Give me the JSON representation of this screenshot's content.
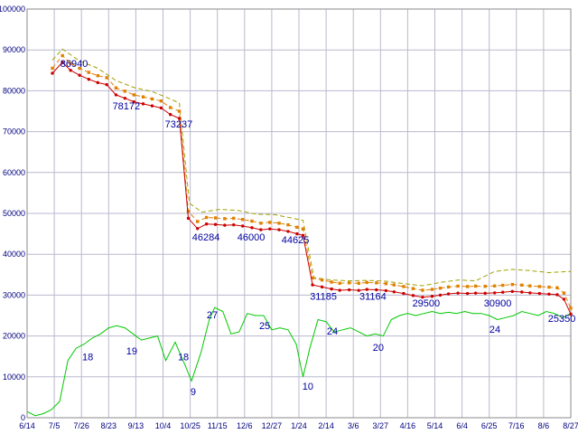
{
  "window": {
    "background": "#ffffff"
  },
  "chart_data": {
    "type": "line",
    "title": "",
    "grid": true,
    "legend": "none",
    "x_axis": {
      "tick_positions": [
        0,
        1,
        2,
        3,
        4,
        5,
        6,
        7,
        8,
        9,
        10,
        11,
        12,
        13,
        14,
        15,
        16,
        17,
        18,
        19,
        20
      ],
      "tick_labels": [
        "6/14",
        "7/5",
        "7/26",
        "8/23",
        "9/13",
        "10/4",
        "10/25",
        "11/15",
        "12/6",
        "12/27",
        "1/24",
        "2/14",
        "3/6",
        "3/27",
        "4/16",
        "5/14",
        "6/4",
        "6/25",
        "7/16",
        "8/6",
        "8/27"
      ]
    },
    "y_axis": {
      "min": 0,
      "max": 100000,
      "tick_values": [
        0,
        10000,
        20000,
        30000,
        40000,
        50000,
        60000,
        70000,
        80000,
        90000,
        100000
      ],
      "tick_labels": [
        "0",
        "10000",
        "20000",
        "30000",
        "40000",
        "50000",
        "60000",
        "70000",
        "80000",
        "90000",
        "100000"
      ]
    },
    "colors": {
      "background": "#ffffff",
      "grid": "#b9b9cf",
      "border": "#8a8a8a",
      "tick_text": "#000080",
      "annotation_text": "#0000a0"
    },
    "series": [
      {
        "name": "count-line",
        "color": "#00c800",
        "style": "solid",
        "marker": "none",
        "value_scale": 1000,
        "points": [
          [
            0,
            1.5
          ],
          [
            0.3,
            0.5
          ],
          [
            0.6,
            1
          ],
          [
            0.9,
            2
          ],
          [
            1.2,
            4
          ],
          [
            1.5,
            14
          ],
          [
            1.8,
            17
          ],
          [
            2.1,
            18
          ],
          [
            2.4,
            19.5
          ],
          [
            2.7,
            20.5
          ],
          [
            3,
            22
          ],
          [
            3.3,
            22.5
          ],
          [
            3.6,
            22
          ],
          [
            3.9,
            20.5
          ],
          [
            4.2,
            19
          ],
          [
            4.5,
            19.5
          ],
          [
            4.8,
            20
          ],
          [
            5.1,
            14
          ],
          [
            5.45,
            18.5
          ],
          [
            5.8,
            13
          ],
          [
            6.05,
            9
          ],
          [
            6.4,
            16
          ],
          [
            6.7,
            24
          ],
          [
            6.9,
            27
          ],
          [
            7.2,
            26
          ],
          [
            7.5,
            20.5
          ],
          [
            7.8,
            21
          ],
          [
            8.1,
            25.5
          ],
          [
            8.4,
            25
          ],
          [
            8.7,
            25
          ],
          [
            9,
            21.5
          ],
          [
            9.3,
            22
          ],
          [
            9.6,
            21.5
          ],
          [
            9.9,
            18
          ],
          [
            10.15,
            10
          ],
          [
            10.4,
            17
          ],
          [
            10.7,
            24
          ],
          [
            11,
            23.5
          ],
          [
            11.3,
            21
          ],
          [
            11.6,
            21.5
          ],
          [
            11.9,
            22
          ],
          [
            12.2,
            21
          ],
          [
            12.5,
            20
          ],
          [
            12.8,
            20.5
          ],
          [
            13.1,
            20
          ],
          [
            13.4,
            24
          ],
          [
            13.7,
            25
          ],
          [
            14,
            25.5
          ],
          [
            14.3,
            25
          ],
          [
            14.6,
            25.5
          ],
          [
            14.9,
            26
          ],
          [
            15.2,
            25.5
          ],
          [
            15.5,
            25.8
          ],
          [
            15.8,
            25.5
          ],
          [
            16.1,
            26
          ],
          [
            16.4,
            25.5
          ],
          [
            16.7,
            25.5
          ],
          [
            17,
            25
          ],
          [
            17.3,
            24
          ],
          [
            17.6,
            24.5
          ],
          [
            17.9,
            25
          ],
          [
            18.2,
            26
          ],
          [
            18.5,
            25.5
          ],
          [
            18.8,
            25
          ],
          [
            19.1,
            26
          ],
          [
            19.4,
            25.5
          ],
          [
            19.7,
            24.5
          ],
          [
            20,
            25.5
          ]
        ]
      },
      {
        "name": "high-price-line",
        "color": "#a0a000",
        "style": "dashed",
        "marker": "none",
        "points": [
          [
            0.93,
            87500
          ],
          [
            1.3,
            90200
          ],
          [
            1.93,
            87300
          ],
          [
            2.6,
            85500
          ],
          [
            3.27,
            82500
          ],
          [
            3.93,
            80800
          ],
          [
            4.6,
            79800
          ],
          [
            5.27,
            78000
          ],
          [
            5.6,
            77000
          ],
          [
            5.97,
            52500
          ],
          [
            6.43,
            50300
          ],
          [
            7.1,
            51000
          ],
          [
            7.77,
            50700
          ],
          [
            8.43,
            49800
          ],
          [
            9.1,
            49700
          ],
          [
            9.77,
            48800
          ],
          [
            10.15,
            48300
          ],
          [
            10.55,
            34300
          ],
          [
            11.2,
            33700
          ],
          [
            11.85,
            33500
          ],
          [
            12.5,
            33600
          ],
          [
            13.2,
            33400
          ],
          [
            13.85,
            32800
          ],
          [
            14.55,
            32300
          ],
          [
            15.2,
            33100
          ],
          [
            15.85,
            33700
          ],
          [
            16.5,
            33500
          ],
          [
            17.2,
            35800
          ],
          [
            17.85,
            36300
          ],
          [
            18.5,
            36000
          ],
          [
            19.2,
            35500
          ],
          [
            19.93,
            35800
          ],
          [
            20,
            35700
          ]
        ]
      },
      {
        "name": "avg-price-line",
        "color": "#e08000",
        "style": "dashed",
        "marker": "square",
        "points": [
          [
            0.93,
            85500
          ],
          [
            1.3,
            88600
          ],
          [
            1.6,
            86700
          ],
          [
            1.93,
            85500
          ],
          [
            2.27,
            84500
          ],
          [
            2.6,
            83700
          ],
          [
            2.93,
            83200
          ],
          [
            3.27,
            80700
          ],
          [
            3.6,
            79900
          ],
          [
            3.93,
            79000
          ],
          [
            4.27,
            78500
          ],
          [
            4.6,
            78000
          ],
          [
            4.93,
            77500
          ],
          [
            5.27,
            75900
          ],
          [
            5.6,
            75000
          ],
          [
            5.93,
            50500
          ],
          [
            6.27,
            48000
          ],
          [
            6.6,
            49000
          ],
          [
            6.93,
            48900
          ],
          [
            7.27,
            48700
          ],
          [
            7.6,
            48800
          ],
          [
            7.93,
            48500
          ],
          [
            8.27,
            48100
          ],
          [
            8.6,
            47600
          ],
          [
            8.93,
            47800
          ],
          [
            9.27,
            47600
          ],
          [
            9.6,
            47200
          ],
          [
            9.93,
            46600
          ],
          [
            10.15,
            46200
          ],
          [
            10.5,
            34200
          ],
          [
            10.85,
            33700
          ],
          [
            11.2,
            33200
          ],
          [
            11.5,
            32900
          ],
          [
            11.85,
            33000
          ],
          [
            12.2,
            32900
          ],
          [
            12.5,
            33100
          ],
          [
            12.85,
            33000
          ],
          [
            13.2,
            32800
          ],
          [
            13.5,
            32500
          ],
          [
            13.85,
            32100
          ],
          [
            14.2,
            31600
          ],
          [
            14.55,
            31200
          ],
          [
            14.9,
            31400
          ],
          [
            15.2,
            31700
          ],
          [
            15.5,
            32000
          ],
          [
            15.85,
            32200
          ],
          [
            16.2,
            32100
          ],
          [
            16.5,
            32200
          ],
          [
            16.85,
            32150
          ],
          [
            17.2,
            32250
          ],
          [
            17.5,
            32400
          ],
          [
            17.85,
            32600
          ],
          [
            18.2,
            32450
          ],
          [
            18.5,
            32250
          ],
          [
            18.85,
            32100
          ],
          [
            19.2,
            31950
          ],
          [
            19.5,
            31800
          ],
          [
            19.75,
            30500
          ],
          [
            20,
            26800
          ]
        ]
      },
      {
        "name": "low-price-line",
        "color": "#cc0000",
        "style": "solid",
        "marker": "dot",
        "points": [
          [
            0.93,
            84300
          ],
          [
            1.3,
            86940
          ],
          [
            1.6,
            85000
          ],
          [
            1.93,
            83800
          ],
          [
            2.27,
            82800
          ],
          [
            2.6,
            82000
          ],
          [
            2.93,
            81500
          ],
          [
            3.27,
            79000
          ],
          [
            3.6,
            78172
          ],
          [
            3.93,
            77300
          ],
          [
            4.27,
            76800
          ],
          [
            4.6,
            76300
          ],
          [
            4.93,
            75800
          ],
          [
            5.27,
            74200
          ],
          [
            5.6,
            73237
          ],
          [
            5.93,
            48800
          ],
          [
            6.27,
            46284
          ],
          [
            6.6,
            47400
          ],
          [
            6.93,
            47300
          ],
          [
            7.27,
            47100
          ],
          [
            7.6,
            47200
          ],
          [
            7.93,
            46900
          ],
          [
            8.27,
            46500
          ],
          [
            8.6,
            46000
          ],
          [
            8.93,
            46200
          ],
          [
            9.27,
            46000
          ],
          [
            9.6,
            45600
          ],
          [
            9.93,
            45000
          ],
          [
            10.15,
            44625
          ],
          [
            10.5,
            32500
          ],
          [
            10.85,
            32000
          ],
          [
            11.2,
            31500
          ],
          [
            11.5,
            31185
          ],
          [
            11.85,
            31300
          ],
          [
            12.2,
            31164
          ],
          [
            12.5,
            31400
          ],
          [
            12.85,
            31300
          ],
          [
            13.2,
            31100
          ],
          [
            13.5,
            30800
          ],
          [
            13.85,
            30400
          ],
          [
            14.2,
            29900
          ],
          [
            14.55,
            29500
          ],
          [
            14.9,
            29700
          ],
          [
            15.2,
            30000
          ],
          [
            15.5,
            30300
          ],
          [
            15.85,
            30500
          ],
          [
            16.2,
            30400
          ],
          [
            16.5,
            30500
          ],
          [
            16.85,
            30450
          ],
          [
            17.2,
            30550
          ],
          [
            17.5,
            30700
          ],
          [
            17.85,
            30900
          ],
          [
            18.2,
            30750
          ],
          [
            18.5,
            30550
          ],
          [
            18.85,
            30400
          ],
          [
            19.2,
            30250
          ],
          [
            19.5,
            30100
          ],
          [
            19.75,
            29000
          ],
          [
            20,
            25350
          ]
        ]
      }
    ],
    "annotations": [
      {
        "text": "86940",
        "x": 1.73,
        "y": 85840
      },
      {
        "text": "78172",
        "x": 3.65,
        "y": 75400
      },
      {
        "text": "73237",
        "x": 5.58,
        "y": 71000
      },
      {
        "text": "46284",
        "x": 6.58,
        "y": 43400
      },
      {
        "text": "46000",
        "x": 8.24,
        "y": 43400
      },
      {
        "text": "44625",
        "x": 9.87,
        "y": 42700
      },
      {
        "text": "31185",
        "x": 10.9,
        "y": 28900
      },
      {
        "text": "31164",
        "x": 12.72,
        "y": 28900
      },
      {
        "text": "29500",
        "x": 14.68,
        "y": 27200
      },
      {
        "text": "30900",
        "x": 17.31,
        "y": 27200
      },
      {
        "text": "25350",
        "x": 19.67,
        "y": 23400
      },
      {
        "text": "18",
        "x": 2.23,
        "y": 14100
      },
      {
        "text": "19",
        "x": 3.85,
        "y": 15500
      },
      {
        "text": "18",
        "x": 5.75,
        "y": 14100
      },
      {
        "text": "9",
        "x": 6.11,
        "y": 5500
      },
      {
        "text": "27",
        "x": 6.81,
        "y": 24300
      },
      {
        "text": "25",
        "x": 8.74,
        "y": 21700
      },
      {
        "text": "10",
        "x": 10.33,
        "y": 6900
      },
      {
        "text": "24",
        "x": 11.23,
        "y": 20350
      },
      {
        "text": "20",
        "x": 12.92,
        "y": 16400
      },
      {
        "text": "24",
        "x": 17.21,
        "y": 20800
      }
    ]
  }
}
